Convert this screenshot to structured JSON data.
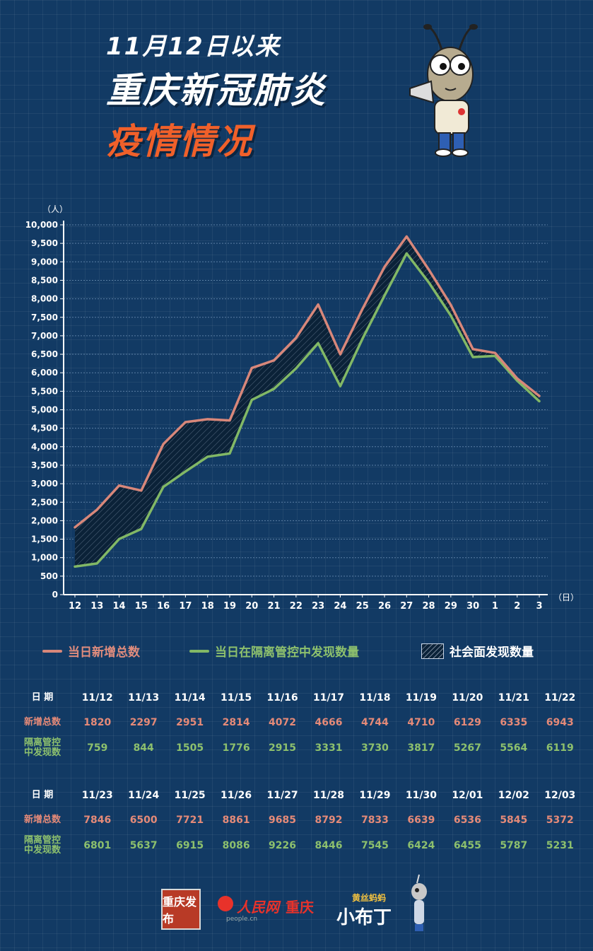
{
  "header": {
    "line1": "11月12日以来",
    "line2": "重庆新冠肺炎",
    "line3": "疫情情况"
  },
  "chart_data": {
    "type": "line",
    "ylabel": "（人）",
    "xlabel": "（日）",
    "ylim": [
      0,
      10000
    ],
    "y_ticks": [
      "0",
      "500",
      "1,000",
      "1,500",
      "2,000",
      "2,500",
      "3,000",
      "3,500",
      "4,000",
      "4,500",
      "5,000",
      "5,500",
      "6,000",
      "6,500",
      "7,000",
      "7,500",
      "8,000",
      "8,500",
      "9,000",
      "9,500",
      "10,000"
    ],
    "categories": [
      "12",
      "13",
      "14",
      "15",
      "16",
      "17",
      "18",
      "19",
      "20",
      "21",
      "22",
      "23",
      "24",
      "25",
      "26",
      "27",
      "28",
      "29",
      "30",
      "1",
      "2",
      "3"
    ],
    "series": [
      {
        "name": "当日新增总数",
        "color": "#d8877a",
        "values": [
          1820,
          2297,
          2951,
          2814,
          4072,
          4666,
          4744,
          4710,
          6129,
          6335,
          6943,
          7846,
          6500,
          7721,
          8861,
          9685,
          8792,
          7833,
          6639,
          6536,
          5845,
          5372
        ]
      },
      {
        "name": "当日在隔离管控中发现数量",
        "color": "#82b866",
        "values": [
          759,
          844,
          1505,
          1776,
          2915,
          3331,
          3730,
          3817,
          5267,
          5564,
          6119,
          6801,
          5637,
          6915,
          8086,
          9226,
          8446,
          7545,
          6424,
          6455,
          5787,
          5231
        ]
      }
    ],
    "area_label": "社会面发现数量",
    "grid": true
  },
  "legend": {
    "item1": "当日新增总数",
    "item2": "当日在隔离管控中发现数量",
    "item3": "社会面发现数量"
  },
  "table": {
    "date_label": "日 期",
    "total_label": "新增总数",
    "iso_label_1": "隔离管控",
    "iso_label_2": "中发现数",
    "part1": {
      "dates": [
        "11/12",
        "11/13",
        "11/14",
        "11/15",
        "11/16",
        "11/17",
        "11/18",
        "11/19",
        "11/20",
        "11/21",
        "11/22"
      ],
      "totals": [
        "1820",
        "2297",
        "2951",
        "2814",
        "4072",
        "4666",
        "4744",
        "4710",
        "6129",
        "6335",
        "6943"
      ],
      "isolated": [
        "759",
        "844",
        "1505",
        "1776",
        "2915",
        "3331",
        "3730",
        "3817",
        "5267",
        "5564",
        "6119"
      ]
    },
    "part2": {
      "dates": [
        "11/23",
        "11/24",
        "11/25",
        "11/26",
        "11/27",
        "11/28",
        "11/29",
        "11/30",
        "12/01",
        "12/02",
        "12/03"
      ],
      "totals": [
        "7846",
        "6500",
        "7721",
        "8861",
        "9685",
        "8792",
        "7833",
        "6639",
        "6536",
        "5845",
        "5372"
      ],
      "isolated": [
        "6801",
        "5637",
        "6915",
        "8086",
        "9226",
        "8446",
        "7545",
        "6424",
        "6455",
        "5787",
        "5231"
      ]
    }
  },
  "logos": {
    "logo1": "重庆发布",
    "logo2": "人民网",
    "logo2_city": "重庆",
    "logo2_sub": "people.cn",
    "logo3_top": "黄丝蚂蚂",
    "logo3_main": "小布丁"
  },
  "colors": {
    "background": "#123a64",
    "accent_orange": "#f0602a",
    "total_line": "#d8877a",
    "isolated_line": "#82b866"
  }
}
